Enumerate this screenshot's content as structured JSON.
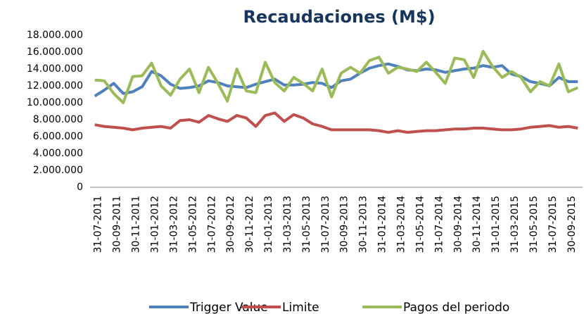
{
  "chart_data": {
    "type": "line",
    "title": "Recaudaciones (M$)",
    "categories": [
      "31-07-2011",
      null,
      "30-09-2011",
      null,
      "30-11-2011",
      null,
      "31-01-2012",
      null,
      "31-03-2012",
      null,
      "31-05-2012",
      null,
      "31-07-2012",
      null,
      "30-09-2012",
      null,
      "30-11-2012",
      null,
      "31-01-2013",
      null,
      "31-03-2013",
      null,
      "31-05-2013",
      null,
      "31-07-2013",
      null,
      "30-09-2013",
      null,
      "30-11-2013",
      null,
      "31-01-2014",
      null,
      "31-03-2014",
      null,
      "31-05-2014",
      null,
      "31-07-2014",
      null,
      "30-09-2014",
      null,
      "30-11-2014",
      null,
      "31-01-2015",
      null,
      "31-03-2015",
      null,
      "31-05-2015",
      null,
      "31-07-2015",
      null,
      "30-09-2015",
      null
    ],
    "series": [
      {
        "name": "Trigger Value",
        "color": "#4f81bd",
        "values": [
          10800000,
          11500000,
          12300000,
          11100000,
          11300000,
          11900000,
          13700000,
          13200000,
          12200000,
          11700000,
          11800000,
          12000000,
          12600000,
          12400000,
          12000000,
          11900000,
          11800000,
          12200000,
          12500000,
          12800000,
          12100000,
          12100000,
          12200000,
          12400000,
          12300000,
          11800000,
          12600000,
          12800000,
          13500000,
          14100000,
          14400000,
          14600000,
          14300000,
          13900000,
          13800000,
          14000000,
          13900000,
          13600000,
          13800000,
          14000000,
          14100000,
          14400000,
          14200000,
          14400000,
          13400000,
          13100000,
          12500000,
          12300000,
          12000000,
          13000000,
          12500000,
          12500000
        ]
      },
      {
        "name": "Limite",
        "color": "#c0504d",
        "values": [
          7400000,
          7200000,
          7100000,
          7000000,
          6800000,
          7000000,
          7100000,
          7200000,
          7000000,
          7900000,
          8000000,
          7700000,
          8500000,
          8100000,
          7800000,
          8500000,
          8200000,
          7200000,
          8500000,
          8800000,
          7800000,
          8600000,
          8200000,
          7500000,
          7200000,
          6800000,
          6800000,
          6800000,
          6800000,
          6800000,
          6700000,
          6500000,
          6700000,
          6500000,
          6600000,
          6700000,
          6700000,
          6800000,
          6900000,
          6900000,
          7000000,
          7000000,
          6900000,
          6800000,
          6800000,
          6900000,
          7100000,
          7200000,
          7300000,
          7100000,
          7200000,
          7000000
        ]
      },
      {
        "name": "Pagos del periodo",
        "color": "#9bbb59",
        "values": [
          12700000,
          12600000,
          11100000,
          10000000,
          13100000,
          13200000,
          14700000,
          12000000,
          10900000,
          12800000,
          14000000,
          11200000,
          14200000,
          12300000,
          10200000,
          14000000,
          11400000,
          11200000,
          14800000,
          12400000,
          11400000,
          13000000,
          12300000,
          11400000,
          14000000,
          10700000,
          13500000,
          14200000,
          13500000,
          15000000,
          15400000,
          13500000,
          14200000,
          14000000,
          13700000,
          14800000,
          13600000,
          12300000,
          15300000,
          15100000,
          13000000,
          16100000,
          14300000,
          13000000,
          13700000,
          13000000,
          11300000,
          12500000,
          12000000,
          14600000,
          11300000,
          11800000
        ]
      }
    ],
    "ylim": [
      0,
      18000000
    ],
    "yticks": [
      0,
      {
        "value": 2000000,
        "label": "2.000.000"
      },
      {
        "value": 4000000,
        "label": "4.000.000"
      },
      {
        "value": 6000000,
        "label": "6.000.000"
      },
      {
        "value": 8000000,
        "label": "8.000.000"
      },
      {
        "value": 10000000,
        "label": "10.000.000"
      },
      {
        "value": 12000000,
        "label": "12.000.000"
      },
      {
        "value": 14000000,
        "label": "14.000.000"
      },
      {
        "value": 16000000,
        "label": "16.000.000"
      },
      {
        "value": 18000000,
        "label": "18.000.000"
      }
    ],
    "grid": false,
    "legend": "bottom"
  }
}
